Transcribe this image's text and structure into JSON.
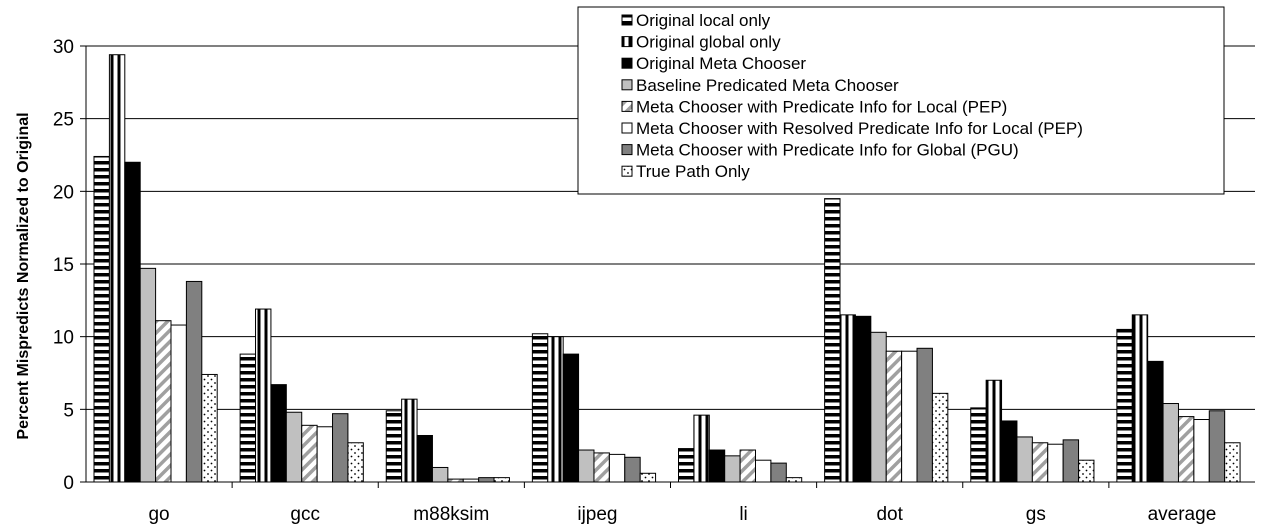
{
  "chart_data": {
    "type": "bar",
    "title": "",
    "xlabel": "",
    "ylabel": "Percent Mispredicts Normalized to Original",
    "ylim": [
      0,
      30
    ],
    "yticks": [
      0,
      5,
      10,
      15,
      20,
      25,
      30
    ],
    "grid": true,
    "legend_position": "top-right",
    "categories": [
      "go",
      "gcc",
      "m88ksim",
      "ijpeg",
      "li",
      "dot",
      "gs",
      "average"
    ],
    "series": [
      {
        "name": "Original local only",
        "pattern": "hstripe",
        "values": [
          22.4,
          8.8,
          4.9,
          10.2,
          2.3,
          19.5,
          5.1,
          10.5
        ]
      },
      {
        "name": "Original global only",
        "pattern": "vstripe",
        "values": [
          29.4,
          11.9,
          5.7,
          10.0,
          4.6,
          11.5,
          7.0,
          11.5
        ]
      },
      {
        "name": "Original Meta Chooser",
        "pattern": "solid-black",
        "values": [
          22.0,
          6.7,
          3.2,
          8.8,
          2.2,
          11.4,
          4.2,
          8.3
        ]
      },
      {
        "name": "Baseline Predicated Meta Chooser",
        "pattern": "solid-lightgray",
        "values": [
          14.7,
          4.8,
          1.0,
          2.2,
          1.8,
          10.3,
          3.1,
          5.4
        ]
      },
      {
        "name": "Meta Chooser with Predicate Info for Local (PEP)",
        "pattern": "diagonal",
        "values": [
          11.1,
          3.9,
          0.2,
          2.0,
          2.2,
          9.0,
          2.7,
          4.5
        ]
      },
      {
        "name": "Meta Chooser with Resolved Predicate Info for Local (PEP)",
        "pattern": "solid-white",
        "values": [
          10.8,
          3.8,
          0.2,
          1.9,
          1.5,
          9.0,
          2.6,
          4.3
        ]
      },
      {
        "name": "Meta Chooser with Predicate Info for Global (PGU)",
        "pattern": "solid-darkgray",
        "values": [
          13.8,
          4.7,
          0.3,
          1.7,
          1.3,
          9.2,
          2.9,
          4.9
        ]
      },
      {
        "name": "True Path Only",
        "pattern": "dots",
        "values": [
          7.4,
          2.7,
          0.3,
          0.6,
          0.3,
          6.1,
          1.5,
          2.7
        ]
      }
    ]
  }
}
